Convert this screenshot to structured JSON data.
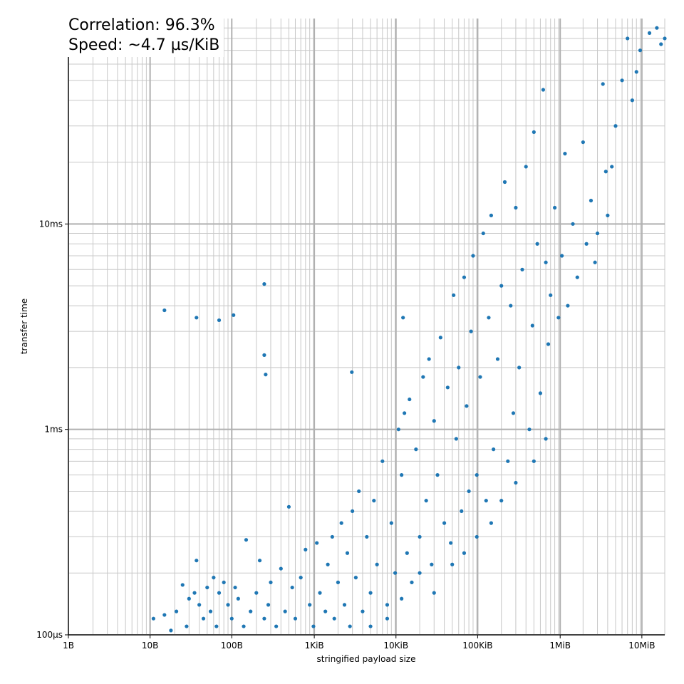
{
  "chart_data": {
    "type": "scatter",
    "annotation": [
      "Correlation: 96.3%",
      "Speed: ~4.7 µs/KiB"
    ],
    "xlabel": "stringified payload size",
    "ylabel": "transfer time",
    "x_scale": "log",
    "y_scale": "log",
    "x_unit": "bytes",
    "y_unit": "ms",
    "xlim": [
      1,
      20000000
    ],
    "ylim": [
      0.1,
      100
    ],
    "grid": true,
    "marker_color": "#1f77b4",
    "x_ticks": [
      {
        "value": 1,
        "label": "1B"
      },
      {
        "value": 10,
        "label": "10B"
      },
      {
        "value": 100,
        "label": "100B"
      },
      {
        "value": 1024,
        "label": "1KiB"
      },
      {
        "value": 10240,
        "label": "10KiB"
      },
      {
        "value": 102400,
        "label": "100KiB"
      },
      {
        "value": 1048576,
        "label": "1MiB"
      },
      {
        "value": 10485760,
        "label": "10MiB"
      }
    ],
    "y_ticks": [
      {
        "value": 0.1,
        "label": "100µs"
      },
      {
        "value": 1,
        "label": "1ms"
      },
      {
        "value": 10,
        "label": "10ms"
      }
    ],
    "points": [
      [
        15,
        3.8
      ],
      [
        37,
        3.5
      ],
      [
        70,
        3.4
      ],
      [
        105,
        3.6
      ],
      [
        250,
        5.1
      ],
      [
        250,
        2.3
      ],
      [
        260,
        1.85
      ],
      [
        2950,
        1.9
      ],
      [
        12500,
        3.5
      ],
      [
        11,
        0.12
      ],
      [
        15,
        0.125
      ],
      [
        18,
        0.105
      ],
      [
        21,
        0.13
      ],
      [
        25,
        0.175
      ],
      [
        28,
        0.11
      ],
      [
        30,
        0.15
      ],
      [
        35,
        0.16
      ],
      [
        37,
        0.23
      ],
      [
        40,
        0.14
      ],
      [
        45,
        0.12
      ],
      [
        50,
        0.17
      ],
      [
        55,
        0.13
      ],
      [
        60,
        0.19
      ],
      [
        65,
        0.11
      ],
      [
        70,
        0.16
      ],
      [
        80,
        0.18
      ],
      [
        90,
        0.14
      ],
      [
        100,
        0.12
      ],
      [
        110,
        0.17
      ],
      [
        120,
        0.15
      ],
      [
        140,
        0.11
      ],
      [
        150,
        0.29
      ],
      [
        170,
        0.13
      ],
      [
        200,
        0.16
      ],
      [
        220,
        0.23
      ],
      [
        250,
        0.12
      ],
      [
        280,
        0.14
      ],
      [
        300,
        0.18
      ],
      [
        350,
        0.11
      ],
      [
        400,
        0.21
      ],
      [
        450,
        0.13
      ],
      [
        500,
        0.42
      ],
      [
        550,
        0.17
      ],
      [
        600,
        0.12
      ],
      [
        700,
        0.19
      ],
      [
        800,
        0.26
      ],
      [
        900,
        0.14
      ],
      [
        1000,
        0.11
      ],
      [
        1100,
        0.28
      ],
      [
        1200,
        0.16
      ],
      [
        1400,
        0.13
      ],
      [
        1500,
        0.22
      ],
      [
        1700,
        0.3
      ],
      [
        1800,
        0.12
      ],
      [
        2000,
        0.18
      ],
      [
        2200,
        0.35
      ],
      [
        2400,
        0.14
      ],
      [
        2600,
        0.25
      ],
      [
        2800,
        0.11
      ],
      [
        3000,
        0.4
      ],
      [
        3300,
        0.19
      ],
      [
        3600,
        0.5
      ],
      [
        4000,
        0.13
      ],
      [
        4500,
        0.3
      ],
      [
        5000,
        0.16
      ],
      [
        5500,
        0.45
      ],
      [
        6000,
        0.22
      ],
      [
        7000,
        0.7
      ],
      [
        8000,
        0.12
      ],
      [
        9000,
        0.35
      ],
      [
        10000,
        0.2
      ],
      [
        11000,
        1.0
      ],
      [
        12000,
        0.6
      ],
      [
        13000,
        1.2
      ],
      [
        14000,
        0.25
      ],
      [
        15000,
        1.4
      ],
      [
        16000,
        0.18
      ],
      [
        18000,
        0.8
      ],
      [
        20000,
        0.3
      ],
      [
        22000,
        1.8
      ],
      [
        24000,
        0.45
      ],
      [
        26000,
        2.2
      ],
      [
        28000,
        0.22
      ],
      [
        30000,
        1.1
      ],
      [
        33000,
        0.6
      ],
      [
        36000,
        2.8
      ],
      [
        40000,
        0.35
      ],
      [
        44000,
        1.6
      ],
      [
        48000,
        0.28
      ],
      [
        52000,
        4.5
      ],
      [
        56000,
        0.9
      ],
      [
        60000,
        2.0
      ],
      [
        65000,
        0.4
      ],
      [
        70000,
        5.5
      ],
      [
        75000,
        1.3
      ],
      [
        80000,
        0.5
      ],
      [
        85000,
        3.0
      ],
      [
        90000,
        7.0
      ],
      [
        100000,
        0.6
      ],
      [
        110000,
        1.8
      ],
      [
        120000,
        9.0
      ],
      [
        130000,
        0.45
      ],
      [
        140000,
        3.5
      ],
      [
        150000,
        11
      ],
      [
        160000,
        0.8
      ],
      [
        180000,
        2.2
      ],
      [
        200000,
        5.0
      ],
      [
        220000,
        16
      ],
      [
        240000,
        0.7
      ],
      [
        260000,
        4.0
      ],
      [
        280000,
        1.2
      ],
      [
        300000,
        12
      ],
      [
        330000,
        2.0
      ],
      [
        360000,
        6.0
      ],
      [
        400000,
        19
      ],
      [
        440000,
        1.0
      ],
      [
        480000,
        3.2
      ],
      [
        500000,
        28
      ],
      [
        550000,
        8.0
      ],
      [
        600000,
        1.5
      ],
      [
        650000,
        45
      ],
      [
        700000,
        6.5
      ],
      [
        750000,
        2.6
      ],
      [
        800000,
        4.5
      ],
      [
        900000,
        12
      ],
      [
        1000000,
        3.5
      ],
      [
        1100000,
        7.0
      ],
      [
        1200000,
        22
      ],
      [
        1300000,
        4.0
      ],
      [
        1500000,
        10
      ],
      [
        1700000,
        5.5
      ],
      [
        2000000,
        25
      ],
      [
        2200000,
        8
      ],
      [
        2500000,
        13
      ],
      [
        2800000,
        6.5
      ],
      [
        3000000,
        9
      ],
      [
        3500000,
        48
      ],
      [
        3800000,
        18
      ],
      [
        4000000,
        11
      ],
      [
        4500000,
        19
      ],
      [
        5000000,
        30
      ],
      [
        6000000,
        50
      ],
      [
        7000000,
        80
      ],
      [
        8000000,
        40
      ],
      [
        9000000,
        55
      ],
      [
        10000000,
        70
      ],
      [
        13000000,
        85
      ],
      [
        16000000,
        90
      ],
      [
        18000000,
        75
      ],
      [
        20000000,
        80
      ],
      [
        5000,
        0.11
      ],
      [
        8000,
        0.14
      ],
      [
        12000,
        0.15
      ],
      [
        20000,
        0.2
      ],
      [
        30000,
        0.16
      ],
      [
        50000,
        0.22
      ],
      [
        70000,
        0.25
      ],
      [
        100000,
        0.3
      ],
      [
        150000,
        0.35
      ],
      [
        200000,
        0.45
      ],
      [
        300000,
        0.55
      ],
      [
        500000,
        0.7
      ],
      [
        700000,
        0.9
      ]
    ]
  }
}
